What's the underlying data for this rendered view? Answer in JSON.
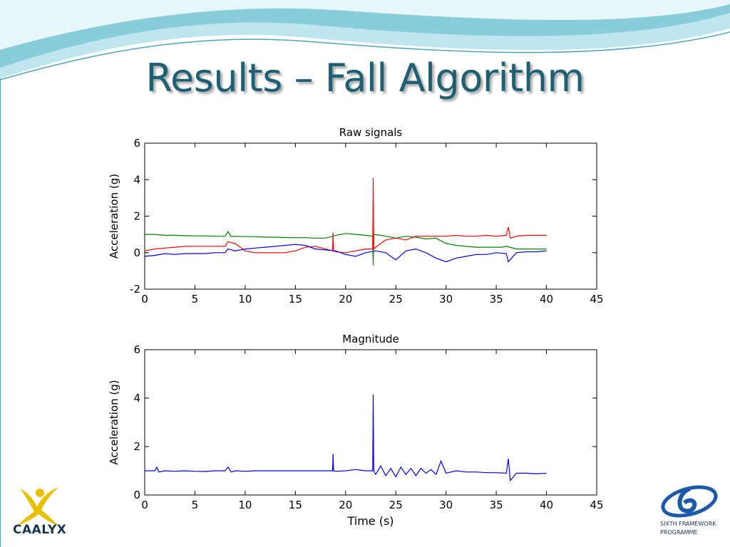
{
  "slide": {
    "title": "Results – Fall Algorithm",
    "logo_left": {
      "name": "caalyx-logo",
      "text": "CAALYX",
      "color": "#e8c000"
    },
    "logo_right": {
      "name": "sixth-framework-logo",
      "line1": "SIXTH FRAMEWORK",
      "line2": "PROGRAMME",
      "color": "#1a5aa8"
    },
    "colors": {
      "title": "#1f5f73",
      "wave_light": "#bfe6ee",
      "wave_dark": "#4fb3c8"
    }
  },
  "chart_data": [
    {
      "type": "line",
      "title": "Raw signals",
      "xlabel": "",
      "ylabel": "Acceleration (g)",
      "xlim": [
        0,
        45
      ],
      "ylim": [
        -2,
        6
      ],
      "xticks": [
        "0",
        "5",
        "10",
        "15",
        "20",
        "25",
        "30",
        "35",
        "40",
        "45"
      ],
      "yticks": [
        "-2",
        "0",
        "2",
        "4",
        "6"
      ],
      "xtick_values": [
        0,
        5,
        10,
        15,
        20,
        25,
        30,
        35,
        40,
        45
      ],
      "ytick_values": [
        -2,
        0,
        2,
        4,
        6
      ],
      "grid": false,
      "legend": "none",
      "series": [
        {
          "color": "#008000",
          "points": [
            [
              0,
              1.0
            ],
            [
              1,
              1.0
            ],
            [
              2,
              0.95
            ],
            [
              3,
              0.95
            ],
            [
              4,
              0.93
            ],
            [
              5,
              0.92
            ],
            [
              6,
              0.92
            ],
            [
              7,
              0.9
            ],
            [
              8,
              0.9
            ],
            [
              8.3,
              1.15
            ],
            [
              8.6,
              0.88
            ],
            [
              9,
              0.9
            ],
            [
              10,
              0.88
            ],
            [
              11,
              0.88
            ],
            [
              12,
              0.85
            ],
            [
              13,
              0.85
            ],
            [
              14,
              0.83
            ],
            [
              15,
              0.82
            ],
            [
              16,
              0.82
            ],
            [
              17,
              0.8
            ],
            [
              18,
              0.8
            ],
            [
              19,
              0.95
            ],
            [
              20,
              1.05
            ],
            [
              21,
              1.0
            ],
            [
              22,
              0.95
            ],
            [
              22.7,
              0.9
            ],
            [
              22.75,
              -0.7
            ],
            [
              22.8,
              1.0
            ],
            [
              23.5,
              0.95
            ],
            [
              24,
              0.9
            ],
            [
              25,
              0.8
            ],
            [
              26,
              0.9
            ],
            [
              27,
              0.85
            ],
            [
              28,
              0.75
            ],
            [
              29,
              0.8
            ],
            [
              30,
              0.5
            ],
            [
              31,
              0.4
            ],
            [
              32,
              0.35
            ],
            [
              33,
              0.3
            ],
            [
              34,
              0.3
            ],
            [
              35,
              0.3
            ],
            [
              35.5,
              0.3
            ],
            [
              36,
              0.35
            ],
            [
              37,
              0.2
            ],
            [
              38,
              0.2
            ],
            [
              39,
              0.2
            ],
            [
              40,
              0.2
            ]
          ]
        },
        {
          "color": "#ff0000",
          "points": [
            [
              0,
              0.1
            ],
            [
              1,
              0.2
            ],
            [
              2,
              0.25
            ],
            [
              3,
              0.3
            ],
            [
              4,
              0.35
            ],
            [
              5,
              0.35
            ],
            [
              6,
              0.35
            ],
            [
              7,
              0.35
            ],
            [
              8,
              0.35
            ],
            [
              8.3,
              0.6
            ],
            [
              9,
              0.5
            ],
            [
              10,
              0.1
            ],
            [
              11,
              0.0
            ],
            [
              12,
              0.0
            ],
            [
              13,
              0.0
            ],
            [
              14,
              0.0
            ],
            [
              15,
              0.1
            ],
            [
              16,
              0.3
            ],
            [
              17,
              0.35
            ],
            [
              18,
              0.2
            ],
            [
              18.7,
              0.1
            ],
            [
              18.75,
              1.1
            ],
            [
              18.8,
              0.1
            ],
            [
              19,
              0.05
            ],
            [
              20,
              0.0
            ],
            [
              21,
              0.1
            ],
            [
              22,
              0.2
            ],
            [
              22.7,
              0.2
            ],
            [
              22.75,
              4.1
            ],
            [
              22.8,
              0.2
            ],
            [
              23,
              0.3
            ],
            [
              23.5,
              0.5
            ],
            [
              24,
              0.7
            ],
            [
              25,
              0.8
            ],
            [
              26,
              0.7
            ],
            [
              27,
              0.9
            ],
            [
              28,
              0.9
            ],
            [
              29,
              0.9
            ],
            [
              30,
              0.9
            ],
            [
              31,
              0.95
            ],
            [
              32,
              0.9
            ],
            [
              33,
              0.9
            ],
            [
              34,
              0.95
            ],
            [
              35,
              0.9
            ],
            [
              36,
              0.95
            ],
            [
              36.2,
              1.4
            ],
            [
              36.4,
              0.8
            ],
            [
              37,
              0.9
            ],
            [
              38,
              0.95
            ],
            [
              39,
              0.95
            ],
            [
              40,
              0.95
            ]
          ]
        },
        {
          "color": "#0000ff",
          "points": [
            [
              0,
              -0.2
            ],
            [
              1,
              -0.15
            ],
            [
              2,
              -0.05
            ],
            [
              3,
              -0.1
            ],
            [
              4,
              -0.05
            ],
            [
              5,
              -0.05
            ],
            [
              6,
              -0.05
            ],
            [
              7,
              0.0
            ],
            [
              8,
              0.0
            ],
            [
              8.3,
              0.2
            ],
            [
              9,
              0.1
            ],
            [
              10,
              0.2
            ],
            [
              11,
              0.25
            ],
            [
              12,
              0.3
            ],
            [
              13,
              0.35
            ],
            [
              14,
              0.4
            ],
            [
              15,
              0.45
            ],
            [
              16,
              0.4
            ],
            [
              17,
              0.2
            ],
            [
              18,
              0.15
            ],
            [
              19,
              0.1
            ],
            [
              20,
              -0.1
            ],
            [
              21,
              -0.2
            ],
            [
              22,
              0.0
            ],
            [
              23,
              0.1
            ],
            [
              24,
              0.0
            ],
            [
              25,
              -0.4
            ],
            [
              26,
              0.1
            ],
            [
              27,
              0.2
            ],
            [
              28,
              0.0
            ],
            [
              29,
              -0.3
            ],
            [
              30,
              -0.5
            ],
            [
              31,
              -0.3
            ],
            [
              32,
              -0.2
            ],
            [
              33,
              -0.1
            ],
            [
              34,
              -0.1
            ],
            [
              35,
              0.0
            ],
            [
              36,
              -0.05
            ],
            [
              36.2,
              -0.5
            ],
            [
              37,
              0.0
            ],
            [
              38,
              0.05
            ],
            [
              39,
              0.05
            ],
            [
              40,
              0.1
            ]
          ]
        }
      ]
    },
    {
      "type": "line",
      "title": "Magnitude",
      "xlabel": "Time (s)",
      "ylabel": "Acceleration (g)",
      "xlim": [
        0,
        45
      ],
      "ylim": [
        0,
        6
      ],
      "xticks": [
        "0",
        "5",
        "10",
        "15",
        "20",
        "25",
        "30",
        "35",
        "40",
        "45"
      ],
      "yticks": [
        "0",
        "2",
        "4",
        "6"
      ],
      "xtick_values": [
        0,
        5,
        10,
        15,
        20,
        25,
        30,
        35,
        40,
        45
      ],
      "ytick_values": [
        0,
        2,
        4,
        6
      ],
      "grid": false,
      "legend": "none",
      "series": [
        {
          "color": "#0000ff",
          "points": [
            [
              0,
              1.0
            ],
            [
              1,
              1.0
            ],
            [
              1.2,
              1.15
            ],
            [
              1.4,
              0.95
            ],
            [
              2,
              1.0
            ],
            [
              3,
              0.98
            ],
            [
              4,
              1.0
            ],
            [
              5,
              0.98
            ],
            [
              6,
              0.97
            ],
            [
              7,
              1.0
            ],
            [
              8,
              1.0
            ],
            [
              8.3,
              1.15
            ],
            [
              8.6,
              0.95
            ],
            [
              9,
              1.0
            ],
            [
              10,
              0.98
            ],
            [
              11,
              1.0
            ],
            [
              12,
              1.0
            ],
            [
              13,
              1.0
            ],
            [
              14,
              1.0
            ],
            [
              15,
              1.0
            ],
            [
              16,
              1.0
            ],
            [
              17,
              1.0
            ],
            [
              18,
              1.0
            ],
            [
              18.7,
              1.0
            ],
            [
              18.75,
              1.7
            ],
            [
              18.8,
              1.0
            ],
            [
              19,
              0.98
            ],
            [
              20,
              1.0
            ],
            [
              21,
              1.05
            ],
            [
              22,
              1.0
            ],
            [
              22.7,
              1.0
            ],
            [
              22.75,
              4.15
            ],
            [
              22.8,
              1.0
            ],
            [
              23,
              0.85
            ],
            [
              23.5,
              1.2
            ],
            [
              24,
              0.8
            ],
            [
              24.5,
              1.1
            ],
            [
              25,
              0.75
            ],
            [
              25.5,
              1.15
            ],
            [
              26,
              0.85
            ],
            [
              26.5,
              1.1
            ],
            [
              27,
              0.8
            ],
            [
              27.5,
              1.1
            ],
            [
              28,
              0.9
            ],
            [
              28.5,
              1.05
            ],
            [
              29,
              0.85
            ],
            [
              29.5,
              1.4
            ],
            [
              30,
              0.9
            ],
            [
              31,
              1.0
            ],
            [
              32,
              0.95
            ],
            [
              33,
              0.95
            ],
            [
              34,
              0.92
            ],
            [
              35,
              0.92
            ],
            [
              36,
              0.9
            ],
            [
              36.2,
              1.5
            ],
            [
              36.4,
              0.6
            ],
            [
              37,
              0.9
            ],
            [
              38,
              0.9
            ],
            [
              39,
              0.88
            ],
            [
              40,
              0.9
            ]
          ]
        }
      ]
    }
  ]
}
